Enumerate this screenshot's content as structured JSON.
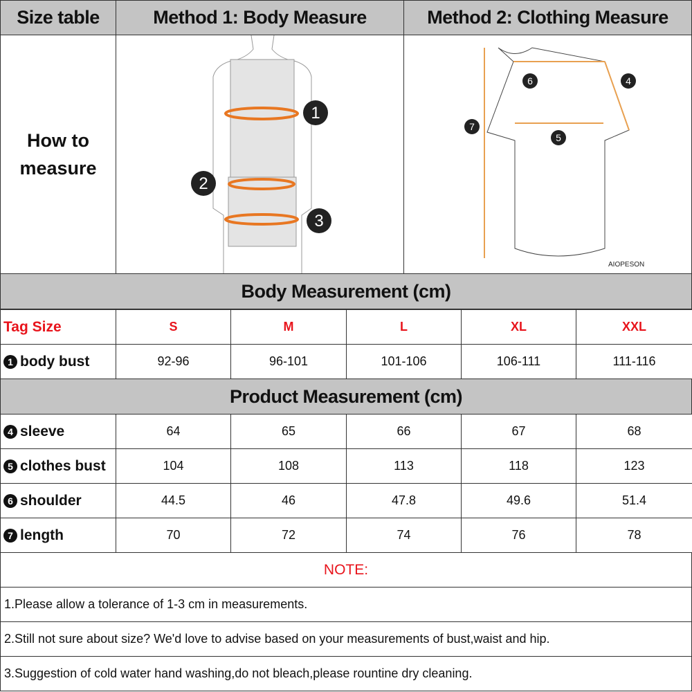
{
  "header": {
    "size_table": "Size table",
    "method1": "Method 1: Body  Measure",
    "method2": "Method 2: Clothing Measure"
  },
  "how_to": {
    "line1": "How to",
    "line2": "measure"
  },
  "brand": "AIOPESON",
  "markers": [
    "1",
    "2",
    "3",
    "4",
    "5",
    "6",
    "7"
  ],
  "body_section": "Body Measurement (cm)",
  "tag_size_label": "Tag Size",
  "sizes": [
    "S",
    "M",
    "L",
    "XL",
    "XXL"
  ],
  "body_rows": [
    {
      "num": "1",
      "label": "body bust",
      "values": [
        "92-96",
        "96-101",
        "101-106",
        "106-111",
        "111-116"
      ]
    }
  ],
  "product_section": "Product Measurement (cm)",
  "product_rows": [
    {
      "num": "4",
      "label": "sleeve",
      "values": [
        "64",
        "65",
        "66",
        "67",
        "68"
      ]
    },
    {
      "num": "5",
      "label": "clothes bust",
      "values": [
        "104",
        "108",
        "113",
        "118",
        "123"
      ]
    },
    {
      "num": "6",
      "label": "shoulder",
      "values": [
        "44.5",
        "46",
        "47.8",
        "49.6",
        "51.4"
      ]
    },
    {
      "num": "7",
      "label": "length",
      "values": [
        "70",
        "72",
        "74",
        "76",
        "78"
      ]
    }
  ],
  "note_title": "NOTE:",
  "notes": [
    "1.Please allow a tolerance of 1-3 cm in measurements.",
    "2.Still not sure about size? We'd love to advise based on your measurements of bust,waist and hip.",
    "3.Suggestion of cold water hand washing,do not bleach,please rountine dry cleaning."
  ],
  "colors": {
    "header_bg": "#c4c4c4",
    "accent_red": "#e8141c",
    "measure_orange": "#e87722"
  }
}
